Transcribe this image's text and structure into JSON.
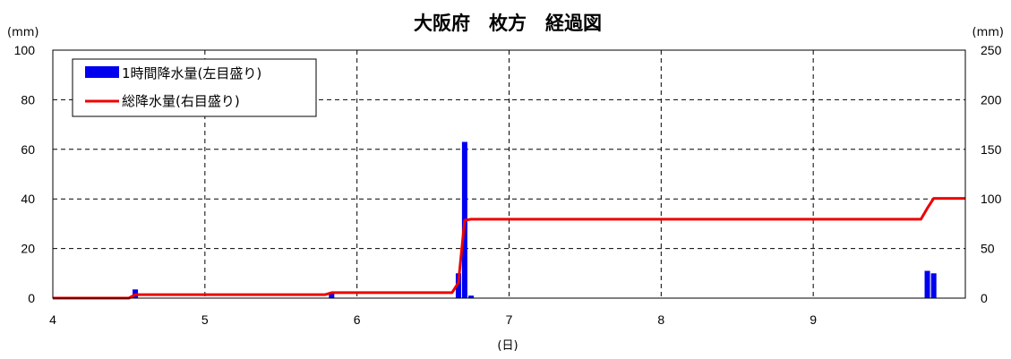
{
  "chart_data": {
    "type": "bar+line",
    "title": "大阪府　枚方　経過図",
    "xlabel": "(日)",
    "ylabel_left": "(mm)",
    "ylabel_right": "(mm)",
    "x_ticks": [
      "4",
      "5",
      "6",
      "7",
      "8",
      "9"
    ],
    "xlim": [
      4,
      10
    ],
    "ylim_left": [
      0,
      100
    ],
    "ylim_right": [
      0,
      250
    ],
    "y_ticks_left": [
      "0",
      "20",
      "40",
      "60",
      "80",
      "100"
    ],
    "y_ticks_right": [
      "0",
      "50",
      "100",
      "150",
      "200",
      "250"
    ],
    "grid": true,
    "legend_position": "top-left",
    "legend": [
      {
        "label": "1時間降水量(左目盛り)",
        "color": "#0000ee",
        "kind": "bar"
      },
      {
        "label": "総降水量(右目盛り)",
        "color": "#ee0000",
        "kind": "line"
      }
    ],
    "series": [
      {
        "name": "1時間降水量(左目盛り)",
        "axis": "left",
        "type": "bar",
        "color": "#0000ee",
        "points": [
          {
            "x": 4.542,
            "y": 3.5
          },
          {
            "x": 5.833,
            "y": 2
          },
          {
            "x": 6.667,
            "y": 10
          },
          {
            "x": 6.708,
            "y": 63
          },
          {
            "x": 6.75,
            "y": 1
          },
          {
            "x": 9.75,
            "y": 11
          },
          {
            "x": 9.792,
            "y": 10
          }
        ]
      },
      {
        "name": "総降水量(右目盛り)",
        "axis": "right",
        "type": "line",
        "color": "#ee0000",
        "points": [
          {
            "x": 4.0,
            "y": 0
          },
          {
            "x": 4.5,
            "y": 0
          },
          {
            "x": 4.542,
            "y": 3.5
          },
          {
            "x": 5.792,
            "y": 3.5
          },
          {
            "x": 5.833,
            "y": 5.5
          },
          {
            "x": 6.625,
            "y": 5.5
          },
          {
            "x": 6.667,
            "y": 15.5
          },
          {
            "x": 6.708,
            "y": 78.5
          },
          {
            "x": 6.75,
            "y": 79.5
          },
          {
            "x": 9.708,
            "y": 79.5
          },
          {
            "x": 9.75,
            "y": 90.5
          },
          {
            "x": 9.792,
            "y": 100.5
          },
          {
            "x": 10.0,
            "y": 100.5
          }
        ]
      }
    ]
  }
}
